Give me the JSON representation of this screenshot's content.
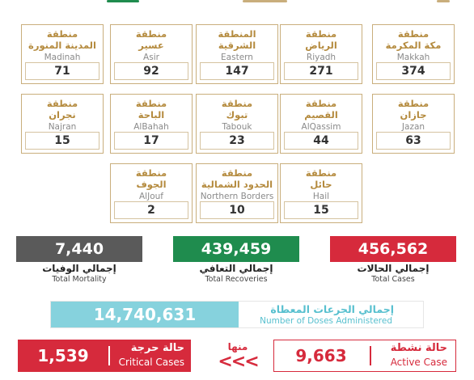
{
  "colors": {
    "gold": "#b48a3d",
    "region_border": "#c9ae7c",
    "mortality": "#5a5a5a",
    "recoveries": "#1f8c4e",
    "total_cases": "#d62a3c",
    "doses": "#86d2dd",
    "critical": "#d62a3c",
    "active": "#d62a3c"
  },
  "regions": [
    {
      "ar1": "منطقة",
      "ar2": "مكة المكرمة",
      "en": "Makkah",
      "count": "374"
    },
    {
      "ar1": "منطقة",
      "ar2": "الرياض",
      "en": "Riyadh",
      "count": "271"
    },
    {
      "ar1": "المنطقة",
      "ar2": "الشرقية",
      "en": "Eastern",
      "count": "147"
    },
    {
      "ar1": "منطقة",
      "ar2": "عسير",
      "en": "Asir",
      "count": "92"
    },
    {
      "ar1": "منطقة",
      "ar2": "المدينة المنورة",
      "en": "Madinah",
      "count": "71"
    },
    {
      "ar1": "منطقة",
      "ar2": "جازان",
      "en": "Jazan",
      "count": "63"
    },
    {
      "ar1": "منطقة",
      "ar2": "القصيم",
      "en": "AlQassim",
      "count": "44"
    },
    {
      "ar1": "منطقة",
      "ar2": "تبوك",
      "en": "Tabouk",
      "count": "23"
    },
    {
      "ar1": "منطقة",
      "ar2": "الباحة",
      "en": "AlBahah",
      "count": "17"
    },
    {
      "ar1": "منطقة",
      "ar2": "نجران",
      "en": "Najran",
      "count": "15"
    },
    {
      "ar1": "منطقة",
      "ar2": "حائل",
      "en": "Hail",
      "count": "15"
    },
    {
      "ar1": "منطقة",
      "ar2": "الحدود الشمالية",
      "en": "Northern Borders",
      "count": "10"
    },
    {
      "ar1": "منطقة",
      "ar2": "الجوف",
      "en": "AlJouf",
      "count": "2"
    }
  ],
  "stats": {
    "total_cases": {
      "value": "456,562",
      "ar": "إجمالي الحالات",
      "en": "Total Cases"
    },
    "recoveries": {
      "value": "439,459",
      "ar": "إجمالي التعافي",
      "en": "Total Recoveries"
    },
    "mortality": {
      "value": "7,440",
      "ar": "إجمالي الوفيات",
      "en": "Total Mortality"
    }
  },
  "doses": {
    "value": "14,740,631",
    "ar": "إجمالي الجرعات المعطاة",
    "en": "Number of Doses Administered"
  },
  "active": {
    "value": "9,663",
    "ar": "حالة نشطة",
    "en": "Active Case"
  },
  "critical": {
    "value": "1,539",
    "ar": "حالة حرجة",
    "en": "Critical Cases"
  },
  "connector": {
    "ar": "منها",
    "arrows": "<<<"
  }
}
